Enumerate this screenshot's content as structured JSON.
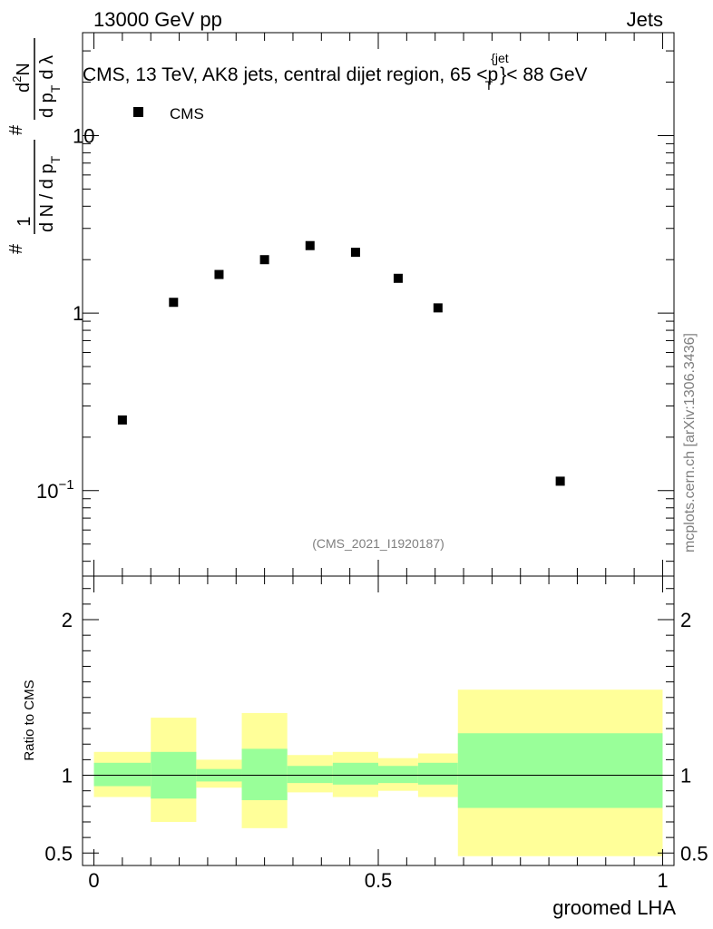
{
  "header": {
    "left": "13000 GeV pp",
    "right": "Jets"
  },
  "side_label": "mcplots.cern.ch [arXiv:1306.3436]",
  "analysis_id": "(CMS_2021_I1920187)",
  "chart_data": [
    {
      "type": "scatter",
      "title": "CMS, 13 TeV, AK8 jets, central dijet region, 65 <p",
      "title_sup": "{jet",
      "title_sub": "T",
      "title_tail": "}< 88 GeV",
      "ylabel": "1/(dN/dpT) d²N/(dpT dλ)",
      "ylabel_parts": {
        "num1": "1",
        "den1": "d N / d p",
        "num2": "d",
        "num2_sup": "2",
        "num2_tail": "N",
        "den2": "d p",
        "den2_tail": "d λ",
        "sub": "T",
        "hash": "#"
      },
      "y_scale": "log",
      "ylim": [
        0.033,
        38
      ],
      "xlim": [
        -0.02,
        1.02
      ],
      "yticks": [
        {
          "value": 0.1,
          "label": "10",
          "sup": "−1"
        },
        {
          "value": 1,
          "label": "1",
          "sup": ""
        },
        {
          "value": 10,
          "label": "10",
          "sup": ""
        }
      ],
      "legend": {
        "placement": "top-left",
        "entries": [
          "CMS"
        ]
      },
      "series": [
        {
          "name": "CMS",
          "marker": "square",
          "points": [
            {
              "x": 0.05,
              "y": 0.25
            },
            {
              "x": 0.14,
              "y": 1.15
            },
            {
              "x": 0.22,
              "y": 1.65
            },
            {
              "x": 0.3,
              "y": 2.0
            },
            {
              "x": 0.38,
              "y": 2.4
            },
            {
              "x": 0.46,
              "y": 2.2
            },
            {
              "x": 0.535,
              "y": 1.57
            },
            {
              "x": 0.605,
              "y": 1.07
            },
            {
              "x": 0.82,
              "y": 0.113
            }
          ]
        }
      ]
    },
    {
      "type": "area",
      "ylabel": "Ratio to CMS",
      "xlabel": "groomed LHA",
      "ylim": [
        0.42,
        2.28
      ],
      "xlim": [
        -0.02,
        1.02
      ],
      "reference_line": 1,
      "xticks": [
        {
          "value": 0,
          "label": "0"
        },
        {
          "value": 0.5,
          "label": "0.5"
        },
        {
          "value": 1,
          "label": "1"
        }
      ],
      "yticks": [
        {
          "value": 0.5,
          "label": "0.5"
        },
        {
          "value": 1,
          "label": "1"
        },
        {
          "value": 2,
          "label": "2"
        }
      ],
      "colors": {
        "inner_band": "#99ff99",
        "outer_band": "#ffff99"
      },
      "bins": [
        {
          "x0": 0.0,
          "x1": 0.1,
          "inner": [
            0.93,
            1.08
          ],
          "outer": [
            0.86,
            1.15
          ]
        },
        {
          "x0": 0.1,
          "x1": 0.18,
          "inner": [
            0.85,
            1.15
          ],
          "outer": [
            0.7,
            1.37
          ]
        },
        {
          "x0": 0.18,
          "x1": 0.26,
          "inner": [
            0.96,
            1.04
          ],
          "outer": [
            0.92,
            1.1
          ]
        },
        {
          "x0": 0.26,
          "x1": 0.34,
          "inner": [
            0.84,
            1.17
          ],
          "outer": [
            0.66,
            1.4
          ]
        },
        {
          "x0": 0.34,
          "x1": 0.42,
          "inner": [
            0.95,
            1.06
          ],
          "outer": [
            0.89,
            1.13
          ]
        },
        {
          "x0": 0.42,
          "x1": 0.5,
          "inner": [
            0.94,
            1.08
          ],
          "outer": [
            0.86,
            1.15
          ]
        },
        {
          "x0": 0.5,
          "x1": 0.57,
          "inner": [
            0.95,
            1.06
          ],
          "outer": [
            0.9,
            1.11
          ]
        },
        {
          "x0": 0.57,
          "x1": 0.64,
          "inner": [
            0.94,
            1.08
          ],
          "outer": [
            0.86,
            1.14
          ]
        },
        {
          "x0": 0.64,
          "x1": 1.0,
          "inner": [
            0.79,
            1.27
          ],
          "outer": [
            0.48,
            1.55
          ]
        }
      ]
    }
  ]
}
